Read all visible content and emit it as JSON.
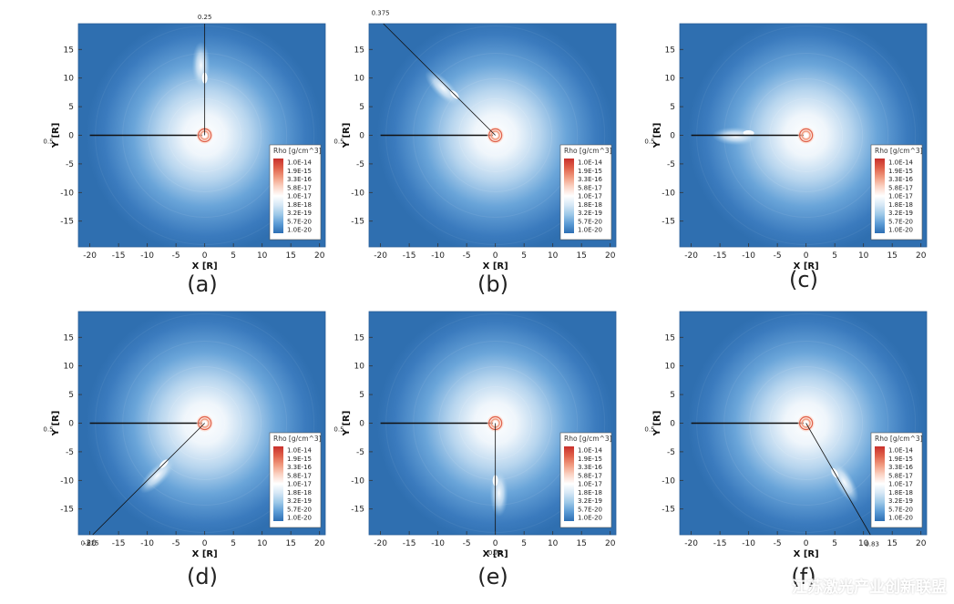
{
  "figure": {
    "watermark": "江苏激光产业创新联盟",
    "colors": {
      "background": "#2f6fb0",
      "mid": "#ffffff",
      "high": "#c0392b"
    }
  },
  "legend": {
    "title": "Rho [g/cm^3]",
    "levels": [
      "1.0E-14",
      "1.9E-15",
      "3.3E-16",
      "5.8E-17",
      "1.0E-17",
      "1.8E-18",
      "3.2E-19",
      "5.7E-20",
      "1.0E-20"
    ],
    "colors": [
      "#c9302c",
      "#e0614a",
      "#f19b80",
      "#fbd3c4",
      "#ffffff",
      "#d5e7f5",
      "#9cc8e8",
      "#5b9bd5",
      "#2e6fb3"
    ]
  },
  "chart_data": [
    {
      "type": "heatmap",
      "caption": "(a)",
      "annotation": "0.25",
      "xlabel": "X [R]",
      "ylabel": "Y [R]",
      "ylabel_sub": "0.5",
      "xlim": [
        -22,
        21
      ],
      "ylim": [
        -19.5,
        19.5
      ],
      "xticks": [
        -20,
        -15,
        -10,
        -5,
        0,
        5,
        10,
        15,
        20
      ],
      "yticks": [
        15,
        10,
        5,
        0,
        -5,
        -10,
        -15
      ],
      "source": [
        0,
        0
      ],
      "particle_line_end": [
        -20,
        0
      ],
      "blob": {
        "x": 0,
        "y": 10,
        "angle_deg": 90
      },
      "guide_line": {
        "from": [
          0,
          0
        ],
        "to": [
          0,
          19.5
        ]
      },
      "annotation_pos": [
        0,
        20.3
      ]
    },
    {
      "type": "heatmap",
      "caption": "(b)",
      "annotation": "0.375",
      "xlabel": "X [R]",
      "ylabel": "Y [R]",
      "ylabel_sub": "0.5",
      "xlim": [
        -22,
        21
      ],
      "ylim": [
        -19.5,
        19.5
      ],
      "xticks": [
        -20,
        -15,
        -10,
        -5,
        0,
        5,
        10,
        15,
        20
      ],
      "yticks": [
        15,
        10,
        5,
        0,
        -5,
        -10,
        -15
      ],
      "source": [
        0,
        0
      ],
      "particle_line_end": [
        -20,
        0
      ],
      "blob": {
        "x": -7.1,
        "y": 7.1,
        "angle_deg": 135
      },
      "guide_line": {
        "from": [
          0,
          0
        ],
        "to": [
          -19.5,
          19.5
        ]
      },
      "annotation_pos": [
        -20,
        21
      ]
    },
    {
      "type": "heatmap",
      "caption": "(c)",
      "annotation": "",
      "xlabel": "X [R]",
      "ylabel": "Y [R]",
      "ylabel_sub": "0.5",
      "xlim": [
        -22,
        21
      ],
      "ylim": [
        -19.5,
        19.5
      ],
      "xticks": [
        -20,
        -15,
        -10,
        -5,
        0,
        5,
        10,
        15,
        20
      ],
      "yticks": [
        15,
        10,
        5,
        0,
        -5,
        -10,
        -15
      ],
      "source": [
        0,
        0
      ],
      "particle_line_end": [
        -20,
        0
      ],
      "blob": {
        "x": -10,
        "y": 0.4,
        "angle_deg": 178
      },
      "guide_line": null,
      "annotation_pos": null
    },
    {
      "type": "heatmap",
      "caption": "(d)",
      "annotation": "0.625",
      "xlabel": "X [R]",
      "ylabel": "Y [R]",
      "ylabel_sub": "0.5",
      "xlim": [
        -22,
        21
      ],
      "ylim": [
        -19.5,
        19.5
      ],
      "xticks": [
        -20,
        -15,
        -10,
        -5,
        0,
        5,
        10,
        15,
        20
      ],
      "yticks": [
        15,
        10,
        5,
        0,
        -5,
        -10,
        -15
      ],
      "source": [
        0,
        0
      ],
      "particle_line_end": [
        -20,
        0
      ],
      "blob": {
        "x": -7.1,
        "y": -7.1,
        "angle_deg": 225
      },
      "guide_line": {
        "from": [
          0,
          0
        ],
        "to": [
          -19.5,
          -19.5
        ]
      },
      "annotation_pos": [
        -20,
        -21.3
      ]
    },
    {
      "type": "heatmap",
      "caption": "(e)",
      "annotation": "0.75",
      "xlabel": "X [R]",
      "ylabel": "Y [R]",
      "ylabel_sub": "0.5",
      "xlim": [
        -22,
        21
      ],
      "ylim": [
        -19.5,
        19.5
      ],
      "xticks": [
        -20,
        -15,
        -10,
        -5,
        0,
        5,
        10,
        15,
        20
      ],
      "yticks": [
        15,
        10,
        5,
        0,
        -5,
        -10,
        -15
      ],
      "source": [
        0,
        0
      ],
      "particle_line_end": [
        -20,
        0
      ],
      "blob": {
        "x": 0,
        "y": -10,
        "angle_deg": 270
      },
      "guide_line": {
        "from": [
          0,
          0
        ],
        "to": [
          0,
          -19.5
        ]
      },
      "annotation_pos": [
        0,
        -23
      ]
    },
    {
      "type": "heatmap",
      "caption": "(f)",
      "annotation": "0.83",
      "xlabel": "X [R]",
      "ylabel": "Y [R]",
      "ylabel_sub": "0.5",
      "xlim": [
        -22,
        21
      ],
      "ylim": [
        -19.5,
        19.5
      ],
      "xticks": [
        -20,
        -15,
        -10,
        -5,
        0,
        5,
        10,
        15,
        20
      ],
      "yticks": [
        15,
        10,
        5,
        0,
        -5,
        -10,
        -15
      ],
      "source": [
        0,
        0
      ],
      "particle_line_end": [
        -20,
        0
      ],
      "blob": {
        "x": 5,
        "y": -8.7,
        "angle_deg": 300
      },
      "guide_line": {
        "from": [
          0,
          0
        ],
        "to": [
          11.2,
          -19.5
        ]
      },
      "annotation_pos": [
        11.5,
        -21.5
      ]
    }
  ]
}
